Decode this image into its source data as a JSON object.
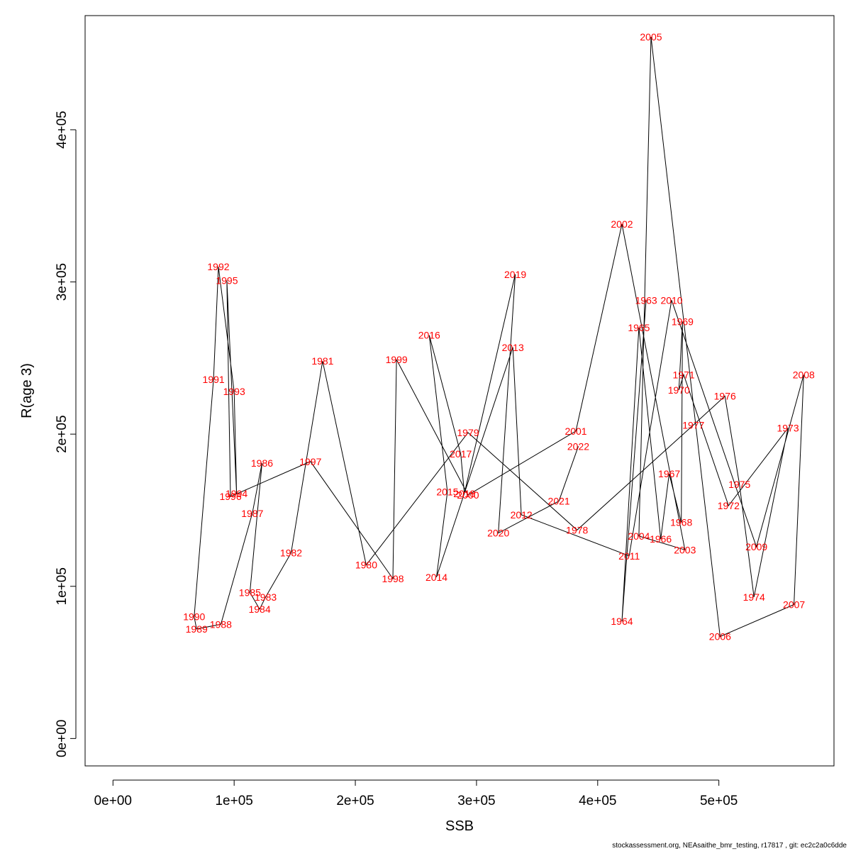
{
  "chart_data": {
    "type": "scatter",
    "xlabel": "SSB",
    "ylabel": "R(age 3)",
    "xlim": [
      -23000,
      595000
    ],
    "ylim": [
      -18000,
      475000
    ],
    "xticks": [
      0,
      100000,
      200000,
      300000,
      400000,
      500000
    ],
    "xtick_labels": [
      "0e+00",
      "1e+05",
      "2e+05",
      "3e+05",
      "4e+05",
      "5e+05"
    ],
    "yticks": [
      0,
      100000,
      200000,
      300000,
      400000
    ],
    "ytick_labels": [
      "0e+00",
      "1e+05",
      "2e+05",
      "3e+05",
      "4e+05"
    ],
    "grid": false,
    "connected": true,
    "line_color": "#000000",
    "label_color": "#ff0000",
    "points": [
      {
        "year": "1963",
        "x": 440000,
        "y": 288000
      },
      {
        "year": "1964",
        "x": 420000,
        "y": 77000
      },
      {
        "year": "1965",
        "x": 434000,
        "y": 270000
      },
      {
        "year": "1966",
        "x": 452000,
        "y": 131000
      },
      {
        "year": "1967",
        "x": 459000,
        "y": 174000
      },
      {
        "year": "1968",
        "x": 469000,
        "y": 142000
      },
      {
        "year": "1969",
        "x": 470000,
        "y": 274000
      },
      {
        "year": "1970",
        "x": 467000,
        "y": 229000
      },
      {
        "year": "1971",
        "x": 471000,
        "y": 239000
      },
      {
        "year": "1972",
        "x": 508000,
        "y": 153000
      },
      {
        "year": "1973",
        "x": 557000,
        "y": 204000
      },
      {
        "year": "1974",
        "x": 529000,
        "y": 93000
      },
      {
        "year": "1975",
        "x": 517000,
        "y": 167000
      },
      {
        "year": "1976",
        "x": 505000,
        "y": 225000
      },
      {
        "year": "1977",
        "x": 479000,
        "y": 206000
      },
      {
        "year": "1978",
        "x": 383000,
        "y": 137000
      },
      {
        "year": "1979",
        "x": 293000,
        "y": 201000
      },
      {
        "year": "1980",
        "x": 209000,
        "y": 114000
      },
      {
        "year": "1981",
        "x": 173000,
        "y": 248000
      },
      {
        "year": "1982",
        "x": 147000,
        "y": 122000
      },
      {
        "year": "1983",
        "x": 126000,
        "y": 93000
      },
      {
        "year": "1984",
        "x": 121000,
        "y": 85000
      },
      {
        "year": "1985",
        "x": 113000,
        "y": 96000
      },
      {
        "year": "1986",
        "x": 123000,
        "y": 181000
      },
      {
        "year": "1987",
        "x": 115000,
        "y": 148000
      },
      {
        "year": "1988",
        "x": 89000,
        "y": 75000
      },
      {
        "year": "1989",
        "x": 69000,
        "y": 72000
      },
      {
        "year": "1990",
        "x": 67000,
        "y": 80000
      },
      {
        "year": "1991",
        "x": 83000,
        "y": 236000
      },
      {
        "year": "1992",
        "x": 87000,
        "y": 310000
      },
      {
        "year": "1993",
        "x": 100000,
        "y": 228000
      },
      {
        "year": "1994",
        "x": 102000,
        "y": 161000
      },
      {
        "year": "1995",
        "x": 94000,
        "y": 301000
      },
      {
        "year": "1996",
        "x": 97000,
        "y": 159000
      },
      {
        "year": "1997",
        "x": 163000,
        "y": 182000
      },
      {
        "year": "1998",
        "x": 231000,
        "y": 105000
      },
      {
        "year": "1999",
        "x": 234000,
        "y": 249000
      },
      {
        "year": "2000",
        "x": 293000,
        "y": 160000
      },
      {
        "year": "2001",
        "x": 382000,
        "y": 202000
      },
      {
        "year": "2002",
        "x": 420000,
        "y": 338000
      },
      {
        "year": "2003",
        "x": 472000,
        "y": 124000
      },
      {
        "year": "2004",
        "x": 434000,
        "y": 133000
      },
      {
        "year": "2005",
        "x": 444000,
        "y": 461000
      },
      {
        "year": "2006",
        "x": 501000,
        "y": 67000
      },
      {
        "year": "2007",
        "x": 562000,
        "y": 88000
      },
      {
        "year": "2008",
        "x": 570000,
        "y": 239000
      },
      {
        "year": "2009",
        "x": 531000,
        "y": 126000
      },
      {
        "year": "2010",
        "x": 461000,
        "y": 288000
      },
      {
        "year": "2011",
        "x": 426000,
        "y": 120000
      },
      {
        "year": "2012",
        "x": 337000,
        "y": 147000
      },
      {
        "year": "2013",
        "x": 330000,
        "y": 257000
      },
      {
        "year": "2014",
        "x": 267000,
        "y": 106000
      },
      {
        "year": "2015",
        "x": 276000,
        "y": 162000
      },
      {
        "year": "2016",
        "x": 261000,
        "y": 265000
      },
      {
        "year": "2017",
        "x": 287000,
        "y": 187000
      },
      {
        "year": "2018",
        "x": 290000,
        "y": 161000
      },
      {
        "year": "2019",
        "x": 332000,
        "y": 305000
      },
      {
        "year": "2020",
        "x": 318000,
        "y": 135000
      },
      {
        "year": "2021",
        "x": 368000,
        "y": 156000
      },
      {
        "year": "2022",
        "x": 384000,
        "y": 192000
      }
    ]
  },
  "footer_text": "stockassessment.org, NEAsaithe_bmr_testing, r17817 , git: ec2c2a0c6dde"
}
